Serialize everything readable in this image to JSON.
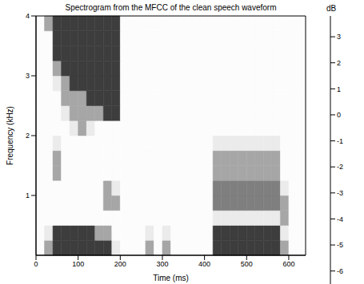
{
  "chart_data": {
    "type": "heatmap",
    "title": "Spectrogram from the MFCC of the clean speech waveform",
    "x_label": "Time (ms)",
    "y_label": "Frequency (kHz)",
    "x_bins": [
      0,
      20,
      40,
      60,
      80,
      100,
      120,
      140,
      160,
      180,
      200,
      220,
      240,
      260,
      280,
      300,
      320,
      340,
      360,
      380,
      400,
      420,
      440,
      460,
      480,
      500,
      520,
      540,
      560,
      580,
      600,
      620,
      640
    ],
    "y_bins": [
      0,
      0.25,
      0.5,
      0.75,
      1,
      1.25,
      1.5,
      1.75,
      2,
      2.25,
      2.5,
      2.75,
      3,
      3.25,
      3.5,
      3.75,
      4
    ],
    "values": [
      [
        -1,
        2,
        3.5,
        3.5,
        3.5,
        3.5,
        3.5,
        3.5,
        3.5,
        1,
        -1,
        -1,
        -1,
        2,
        -1,
        2,
        -1,
        -1,
        -1,
        -1,
        -1,
        3.5,
        3.5,
        3.5,
        3.5,
        3.5,
        3.5,
        3.5,
        3.5,
        2,
        -1,
        -1
      ],
      [
        -1,
        1,
        3.5,
        3.5,
        3.5,
        3.5,
        3.5,
        2,
        2,
        -1,
        -1,
        -1,
        -1,
        1,
        -1,
        1,
        -1,
        -1,
        -1,
        -1,
        -1,
        3.5,
        3.5,
        3.5,
        3.5,
        3.5,
        3.5,
        3.5,
        3.5,
        1,
        -1,
        -1
      ],
      [
        -1,
        -1,
        -1,
        -1,
        -1,
        -1,
        -1,
        -1,
        -1,
        -1,
        -1,
        -1,
        -1,
        -1,
        -1,
        -1,
        -1,
        -1,
        -1,
        -1,
        -1,
        1,
        1,
        1,
        1,
        1,
        1,
        1,
        1,
        2,
        -1,
        -1
      ],
      [
        -1,
        -1,
        -1,
        -1,
        -1,
        -1,
        -1,
        -1,
        2,
        2,
        -1,
        -1,
        -1,
        -1,
        -1,
        -1,
        -1,
        -1,
        -1,
        -1,
        -1,
        2.5,
        2.5,
        2.5,
        2.5,
        2.5,
        2.5,
        2.5,
        2.5,
        2,
        -1,
        -1
      ],
      [
        -1,
        -1,
        -1,
        -1,
        -1,
        -1,
        -1,
        -1,
        2,
        1,
        -1,
        -1,
        -1,
        -1,
        -1,
        -1,
        -1,
        -1,
        -1,
        -1,
        -1,
        2.5,
        2.5,
        2.5,
        2.5,
        2.5,
        2.5,
        2.5,
        2.5,
        1,
        -1,
        -1
      ],
      [
        -1,
        -1,
        2,
        -1,
        -1,
        -1,
        -1,
        -1,
        -1,
        -1,
        -1,
        -1,
        -1,
        -1,
        -1,
        -1,
        -1,
        -1,
        -1,
        -1,
        -1,
        2,
        2,
        2,
        2,
        2,
        2,
        2,
        2,
        -1,
        -1,
        -1
      ],
      [
        -1,
        -1,
        2,
        -1,
        -1,
        -1,
        -1,
        -1,
        -1,
        -1,
        -1,
        -1,
        -1,
        -1,
        -1,
        -1,
        -1,
        -1,
        -1,
        -1,
        -1,
        2,
        2,
        2,
        2,
        2,
        2,
        2,
        2,
        -1,
        -1,
        -1
      ],
      [
        -1,
        -1,
        1,
        -1,
        -1,
        -1,
        -1,
        -1,
        -1,
        -1,
        -1,
        -1,
        -1,
        -1,
        -1,
        -1,
        -1,
        -1,
        -1,
        -1,
        -1,
        1,
        1,
        1,
        1,
        1,
        1,
        1,
        1,
        -1,
        -1,
        -1
      ],
      [
        -1,
        -1,
        -1,
        -1,
        1,
        2,
        1,
        -1,
        -1,
        -1,
        -1,
        -1,
        -1,
        -1,
        -1,
        -1,
        -1,
        -1,
        -1,
        -1,
        -1,
        -1,
        -1,
        -1,
        -1,
        -1,
        -1,
        -1,
        -1,
        -1,
        -1,
        -1
      ],
      [
        -1,
        -1,
        -1,
        1,
        2,
        2,
        2,
        2,
        3.5,
        3.5,
        -1,
        -1,
        -1,
        -1,
        -1,
        -1,
        -1,
        -1,
        -1,
        -1,
        -1,
        -1,
        -1,
        -1,
        -1,
        -1,
        -1,
        -1,
        -1,
        -1,
        -1,
        -1
      ],
      [
        -1,
        -1,
        -1,
        2,
        2,
        2,
        3.5,
        3.5,
        3.5,
        3.5,
        -1,
        -1,
        -1,
        -1,
        -1,
        -1,
        -1,
        -1,
        -1,
        -1,
        -1,
        -1,
        -1,
        -1,
        -1,
        -1,
        -1,
        -1,
        -1,
        -1,
        -1,
        -1
      ],
      [
        -1,
        -1,
        1,
        2,
        3.5,
        3.5,
        3.5,
        3.5,
        3.5,
        3.5,
        -1,
        -1,
        -1,
        -1,
        -1,
        -1,
        -1,
        -1,
        -1,
        -1,
        -1,
        -1,
        -1,
        -1,
        -1,
        -1,
        -1,
        -1,
        -1,
        -1,
        -1,
        -1
      ],
      [
        -1,
        -1,
        2,
        3.5,
        3.5,
        3.5,
        3.5,
        3.5,
        3.5,
        3.5,
        -1,
        -1,
        -1,
        -1,
        -1,
        -1,
        -1,
        -1,
        -1,
        -1,
        -1,
        -1,
        -1,
        -1,
        -1,
        -1,
        -1,
        -1,
        -1,
        -1,
        -1,
        -1
      ],
      [
        -1,
        -1,
        3.5,
        3.5,
        3.5,
        3.5,
        3.5,
        3.5,
        3.5,
        3.5,
        -1,
        -1,
        -1,
        -1,
        -1,
        -1,
        -1,
        -1,
        -1,
        -1,
        -1,
        -1,
        -1,
        -1,
        -1,
        -1,
        -1,
        -1,
        -1,
        -1,
        -1,
        -1
      ],
      [
        -1,
        -1,
        3.5,
        3.5,
        3.5,
        3.5,
        3.5,
        3.5,
        3.5,
        3.5,
        -1,
        -1,
        -1,
        -1,
        -1,
        -1,
        -1,
        -1,
        -1,
        -1,
        -1,
        -1,
        -1,
        -1,
        -1,
        -1,
        -1,
        -1,
        -1,
        -1,
        -1,
        -1
      ],
      [
        -1,
        2,
        3.5,
        3.5,
        3.5,
        3.5,
        3.5,
        3.5,
        3.5,
        3.5,
        -1,
        -1,
        -1,
        -1,
        -1,
        -1,
        -1,
        -1,
        -1,
        -1,
        -1,
        -1,
        -1,
        -1,
        -1,
        -1,
        -1,
        -1,
        -1,
        -1,
        -1,
        -1
      ]
    ],
    "xlim": [
      0,
      640
    ],
    "ylim": [
      0,
      4
    ],
    "xticks": [
      0,
      100,
      200,
      300,
      400,
      500,
      600
    ],
    "yticks": [
      1,
      2,
      3,
      4
    ],
    "colorbar_label": "dB",
    "colorbar_range": [
      -6.5,
      3.8
    ],
    "colorbar_ticks": [
      3,
      2,
      1,
      0,
      -1,
      -2,
      -3,
      -4,
      -5,
      -6
    ]
  }
}
